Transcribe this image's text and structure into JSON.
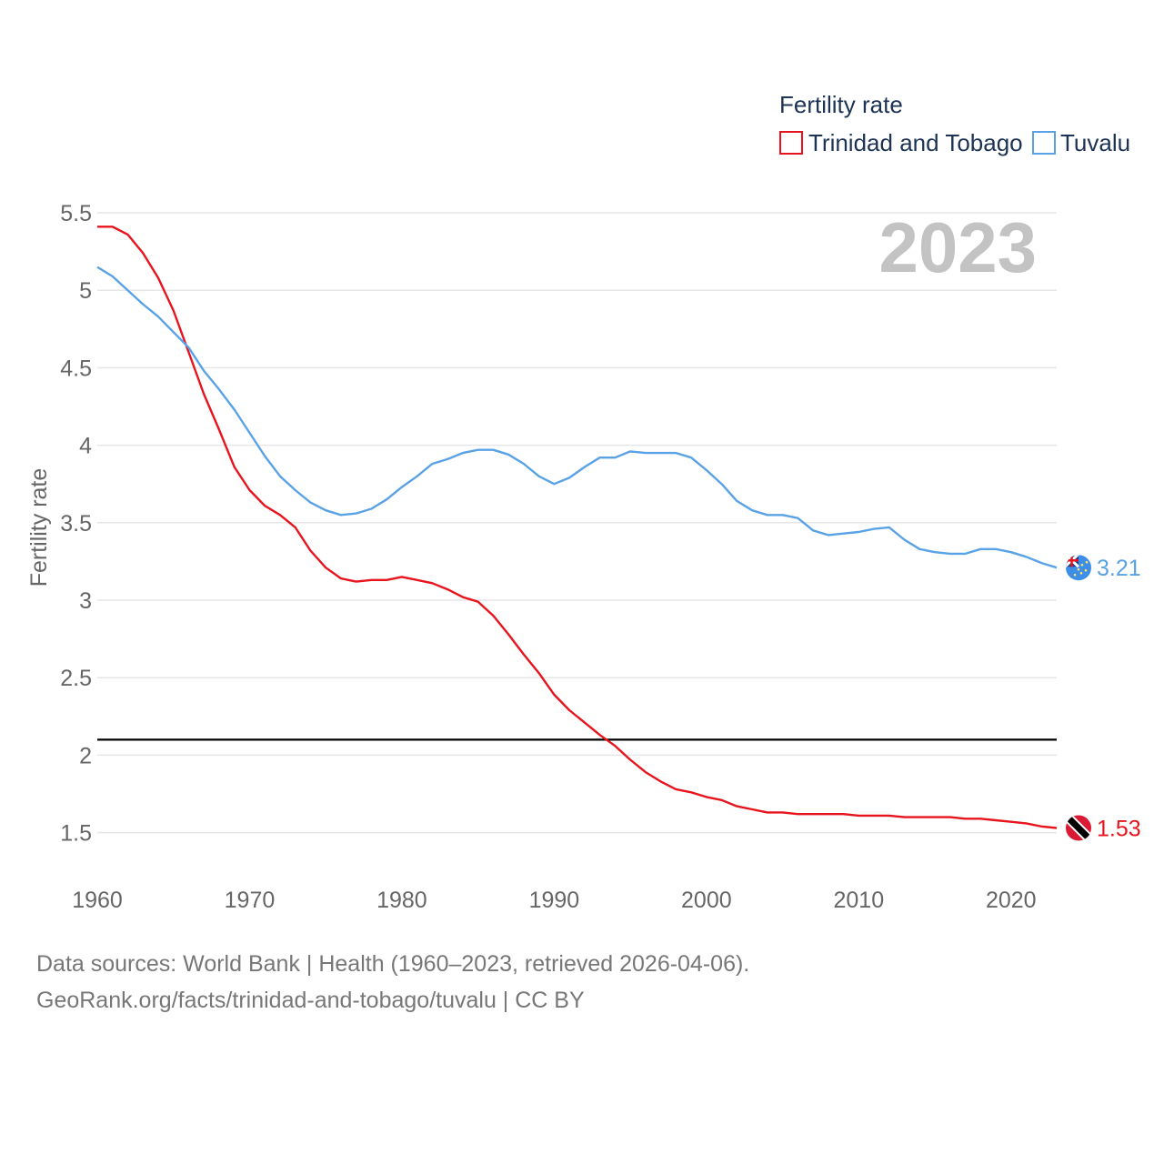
{
  "legend": {
    "title": "Fertility rate",
    "items": [
      {
        "label": "Trinidad and Tobago",
        "color": "#e8141d"
      },
      {
        "label": "Tuvalu",
        "color": "#5aa2e6"
      }
    ]
  },
  "year_label": "2023",
  "footer": {
    "line1": "Data sources: World Bank | Health (1960–2023, retrieved 2026-04-06).",
    "line2": "GeoRank.org/facts/trinidad-and-tobago/tuvalu | CC BY"
  },
  "chart_data": {
    "type": "line",
    "title": "Fertility rate",
    "xlabel": "",
    "ylabel": "Fertility rate",
    "xlim": [
      1960,
      2023
    ],
    "ylim": [
      1.3,
      5.5
    ],
    "x_ticks": [
      1960,
      1970,
      1980,
      1990,
      2000,
      2010,
      2020
    ],
    "y_ticks": [
      1.5,
      2,
      2.5,
      3,
      3.5,
      4,
      4.5,
      5,
      5.5
    ],
    "y_tick_labels": [
      "1.5",
      "2",
      "2.5",
      "3",
      "3.5",
      "4",
      "4.5",
      "5",
      "5.5"
    ],
    "grid": true,
    "legend_position": "top-right",
    "reference_line": {
      "y": 2.1,
      "color": "#000000"
    },
    "x": [
      1960,
      1961,
      1962,
      1963,
      1964,
      1965,
      1966,
      1967,
      1968,
      1969,
      1970,
      1971,
      1972,
      1973,
      1974,
      1975,
      1976,
      1977,
      1978,
      1979,
      1980,
      1981,
      1982,
      1983,
      1984,
      1985,
      1986,
      1987,
      1988,
      1989,
      1990,
      1991,
      1992,
      1993,
      1994,
      1995,
      1996,
      1997,
      1998,
      1999,
      2000,
      2001,
      2002,
      2003,
      2004,
      2005,
      2006,
      2007,
      2008,
      2009,
      2010,
      2011,
      2012,
      2013,
      2014,
      2015,
      2016,
      2017,
      2018,
      2019,
      2020,
      2021,
      2022,
      2023
    ],
    "series": [
      {
        "name": "Trinidad and Tobago",
        "color": "#e8141d",
        "end_label": "1.53",
        "values": [
          5.41,
          5.41,
          5.36,
          5.24,
          5.08,
          4.87,
          4.6,
          4.33,
          4.1,
          3.86,
          3.71,
          3.61,
          3.55,
          3.47,
          3.32,
          3.21,
          3.14,
          3.12,
          3.13,
          3.13,
          3.15,
          3.13,
          3.11,
          3.07,
          3.02,
          2.99,
          2.9,
          2.78,
          2.65,
          2.53,
          2.39,
          2.29,
          2.21,
          2.13,
          2.06,
          1.97,
          1.89,
          1.83,
          1.78,
          1.76,
          1.73,
          1.71,
          1.67,
          1.65,
          1.63,
          1.63,
          1.62,
          1.62,
          1.62,
          1.62,
          1.61,
          1.61,
          1.61,
          1.6,
          1.6,
          1.6,
          1.6,
          1.59,
          1.59,
          1.58,
          1.57,
          1.56,
          1.54,
          1.53
        ]
      },
      {
        "name": "Tuvalu",
        "color": "#5aa2e6",
        "end_label": "3.21",
        "values": [
          5.15,
          5.09,
          5.0,
          4.91,
          4.83,
          4.73,
          4.63,
          4.48,
          4.36,
          4.23,
          4.08,
          3.93,
          3.8,
          3.71,
          3.63,
          3.58,
          3.55,
          3.56,
          3.59,
          3.65,
          3.73,
          3.8,
          3.88,
          3.91,
          3.95,
          3.97,
          3.97,
          3.94,
          3.88,
          3.8,
          3.75,
          3.79,
          3.86,
          3.92,
          3.92,
          3.96,
          3.95,
          3.95,
          3.95,
          3.92,
          3.84,
          3.75,
          3.64,
          3.58,
          3.55,
          3.55,
          3.53,
          3.45,
          3.42,
          3.43,
          3.44,
          3.46,
          3.47,
          3.39,
          3.33,
          3.31,
          3.3,
          3.3,
          3.33,
          3.33,
          3.31,
          3.28,
          3.24,
          3.21
        ]
      }
    ]
  }
}
